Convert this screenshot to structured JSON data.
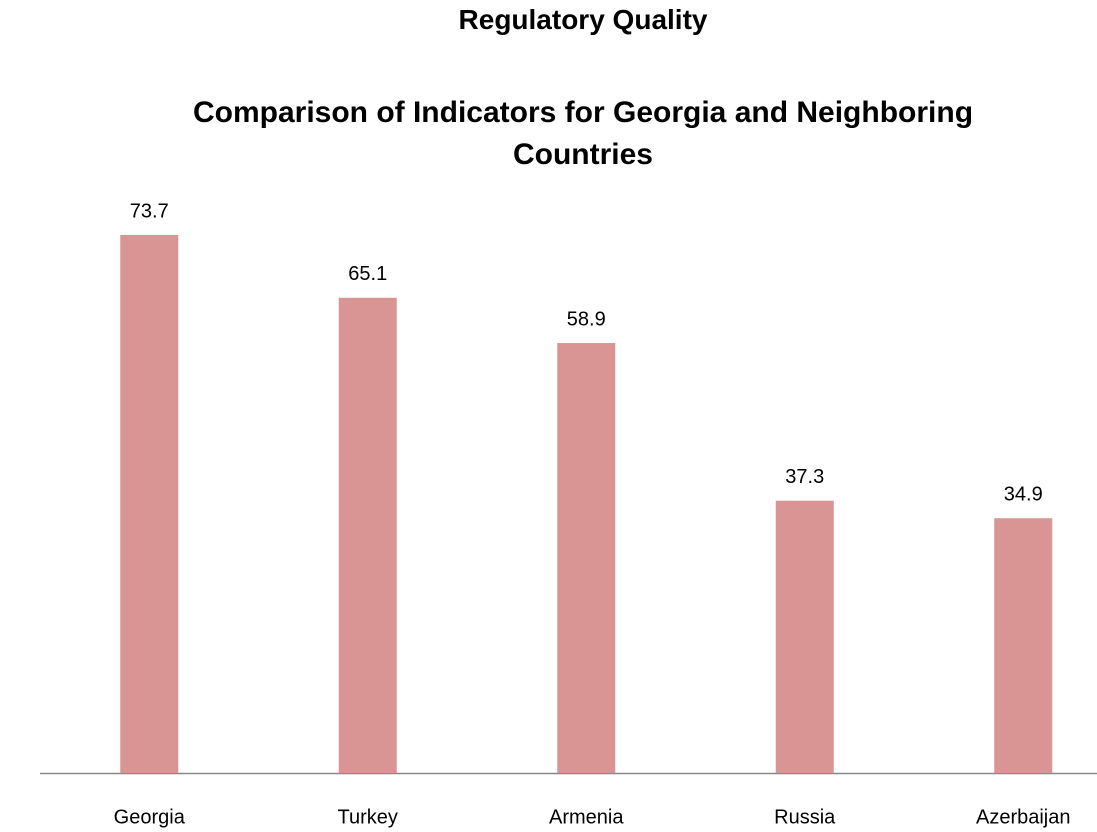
{
  "chart_data": {
    "type": "bar",
    "title": "Regulatory Quality",
    "subtitle": "Comparison of Indicators for Georgia and Neighboring Countries",
    "categories": [
      "Georgia",
      "Turkey",
      "Armenia",
      "Russia",
      "Azerbaijan"
    ],
    "values": [
      73.7,
      65.1,
      58.9,
      37.3,
      34.9
    ],
    "color": "#d99594",
    "ylim": [
      0,
      80
    ]
  }
}
